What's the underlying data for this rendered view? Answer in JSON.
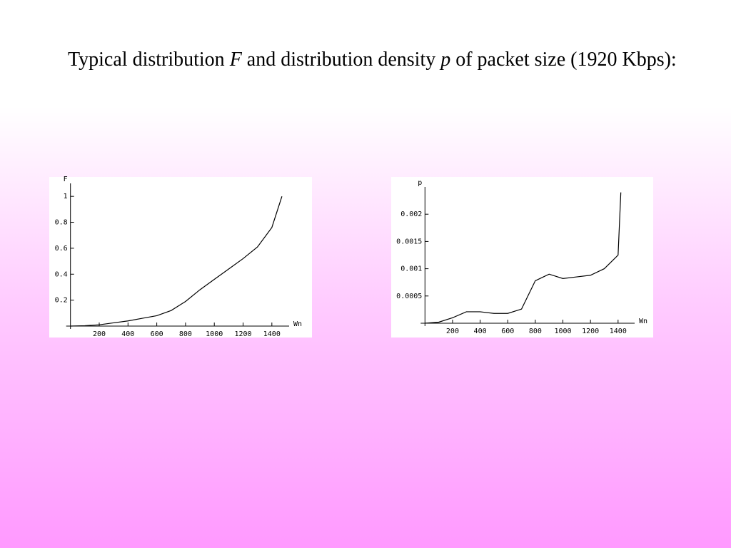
{
  "slide": {
    "title_parts": [
      "Typical distribution ",
      "F",
      " and distribution density ",
      "p",
      " of packet size (1920 Kbps):"
    ]
  },
  "chart_data": [
    {
      "type": "line",
      "x_label": "Wn",
      "y_label": "F",
      "color": "#000000",
      "x": [
        0,
        100,
        200,
        300,
        400,
        500,
        600,
        700,
        800,
        900,
        1000,
        1100,
        1200,
        1300,
        1400,
        1470
      ],
      "values": [
        0,
        0.003,
        0.01,
        0.025,
        0.04,
        0.06,
        0.08,
        0.12,
        0.19,
        0.28,
        0.36,
        0.44,
        0.52,
        0.61,
        0.76,
        1.0
      ],
      "xlim": [
        0,
        1520
      ],
      "ylim": [
        0,
        1.1
      ],
      "xticks": [
        200,
        400,
        600,
        800,
        1000,
        1200,
        1400
      ],
      "yticks": [
        0.2,
        0.4,
        0.6,
        0.8,
        1
      ]
    },
    {
      "type": "line",
      "x_label": "Wn",
      "y_label": "p",
      "color": "#000000",
      "x": [
        0,
        100,
        200,
        300,
        400,
        500,
        600,
        700,
        800,
        900,
        1000,
        1100,
        1200,
        1300,
        1400,
        1420
      ],
      "values": [
        0,
        2e-05,
        0.0001,
        0.00021,
        0.00021,
        0.00018,
        0.00018,
        0.00026,
        0.00078,
        0.0009,
        0.00082,
        0.00085,
        0.00088,
        0.001,
        0.00125,
        0.0024
      ],
      "xlim": [
        0,
        1520
      ],
      "ylim": [
        0,
        0.0025
      ],
      "xticks": [
        200,
        400,
        600,
        800,
        1000,
        1200,
        1400
      ],
      "yticks": [
        0.0005,
        0.001,
        0.0015,
        0.002
      ]
    }
  ]
}
